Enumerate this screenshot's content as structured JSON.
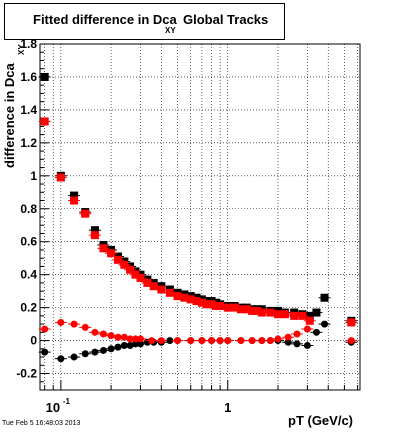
{
  "title": {
    "main": "Fitted difference in Dca",
    "sub": "XY",
    "suffix": "Global Tracks"
  },
  "timestamp": "Tue Feb  5 16:48:03 2013",
  "chart_data": {
    "type": "scatter",
    "title": "Fitted difference in Dca XY Global Tracks",
    "xlabel": "pT (GeV/c)",
    "ylabel": "difference in Dca",
    "ylabel_sub": "XY",
    "xscale": "log",
    "xlim": [
      0.075,
      6.2
    ],
    "ylim": [
      -0.3,
      1.8
    ],
    "grid": true,
    "x_ticks": [
      {
        "value": 0.1,
        "label": "10",
        "exp": "-1"
      },
      {
        "value": 1,
        "label": "1",
        "exp": ""
      }
    ],
    "y_ticks": [
      {
        "value": -0.2,
        "label": "-0.2"
      },
      {
        "value": 0,
        "label": "0"
      },
      {
        "value": 0.2,
        "label": "0.2"
      },
      {
        "value": 0.4,
        "label": "0.4"
      },
      {
        "value": 0.6,
        "label": "0.6"
      },
      {
        "value": 0.8,
        "label": "0.8"
      },
      {
        "value": 1,
        "label": "1"
      },
      {
        "value": 1.2,
        "label": "1.2"
      },
      {
        "value": 1.4,
        "label": "1.4"
      },
      {
        "value": 1.6,
        "label": "1.6"
      },
      {
        "value": 1.8,
        "label": "1.8"
      }
    ],
    "series": [
      {
        "color": "#000000",
        "marker": "square",
        "points": [
          [
            0.08,
            1.6
          ],
          [
            0.1,
            1.0
          ],
          [
            0.12,
            0.88
          ],
          [
            0.14,
            0.78
          ],
          [
            0.16,
            0.67
          ],
          [
            0.18,
            0.58
          ],
          [
            0.2,
            0.55
          ],
          [
            0.22,
            0.51
          ],
          [
            0.24,
            0.48
          ],
          [
            0.26,
            0.45
          ],
          [
            0.28,
            0.42
          ],
          [
            0.3,
            0.4
          ],
          [
            0.33,
            0.37
          ],
          [
            0.36,
            0.35
          ],
          [
            0.4,
            0.33
          ],
          [
            0.45,
            0.31
          ],
          [
            0.5,
            0.29
          ],
          [
            0.55,
            0.28
          ],
          [
            0.6,
            0.27
          ],
          [
            0.65,
            0.26
          ],
          [
            0.7,
            0.25
          ],
          [
            0.75,
            0.24
          ],
          [
            0.8,
            0.24
          ],
          [
            0.85,
            0.23
          ],
          [
            0.9,
            0.22
          ],
          [
            1.0,
            0.21
          ],
          [
            1.1,
            0.21
          ],
          [
            1.2,
            0.2
          ],
          [
            1.3,
            0.2
          ],
          [
            1.4,
            0.19
          ],
          [
            1.5,
            0.19
          ],
          [
            1.6,
            0.19
          ],
          [
            1.8,
            0.18
          ],
          [
            2.0,
            0.18
          ],
          [
            2.2,
            0.17
          ],
          [
            2.5,
            0.17
          ],
          [
            2.8,
            0.16
          ],
          [
            3.1,
            0.15
          ],
          [
            3.4,
            0.17
          ],
          [
            3.8,
            0.26
          ],
          [
            5.5,
            0.12
          ]
        ]
      },
      {
        "color": "#ff0000",
        "marker": "square",
        "points": [
          [
            0.08,
            1.33
          ],
          [
            0.1,
            0.99
          ],
          [
            0.12,
            0.85
          ],
          [
            0.14,
            0.77
          ],
          [
            0.16,
            0.64
          ],
          [
            0.18,
            0.56
          ],
          [
            0.2,
            0.53
          ],
          [
            0.22,
            0.49
          ],
          [
            0.24,
            0.46
          ],
          [
            0.26,
            0.43
          ],
          [
            0.28,
            0.4
          ],
          [
            0.3,
            0.38
          ],
          [
            0.33,
            0.35
          ],
          [
            0.36,
            0.33
          ],
          [
            0.4,
            0.31
          ],
          [
            0.45,
            0.29
          ],
          [
            0.5,
            0.27
          ],
          [
            0.55,
            0.26
          ],
          [
            0.6,
            0.25
          ],
          [
            0.65,
            0.24
          ],
          [
            0.7,
            0.23
          ],
          [
            0.75,
            0.22
          ],
          [
            0.8,
            0.22
          ],
          [
            0.85,
            0.21
          ],
          [
            0.9,
            0.21
          ],
          [
            1.0,
            0.2
          ],
          [
            1.1,
            0.2
          ],
          [
            1.2,
            0.19
          ],
          [
            1.3,
            0.19
          ],
          [
            1.4,
            0.18
          ],
          [
            1.5,
            0.18
          ],
          [
            1.6,
            0.17
          ],
          [
            1.8,
            0.17
          ],
          [
            2.0,
            0.16
          ],
          [
            2.2,
            0.16
          ],
          [
            2.5,
            0.15
          ],
          [
            2.8,
            0.15
          ],
          [
            3.1,
            0.12
          ],
          [
            5.5,
            0.11
          ]
        ]
      },
      {
        "color": "#000000",
        "marker": "circle",
        "points": [
          [
            0.08,
            -0.07
          ],
          [
            0.1,
            -0.11
          ],
          [
            0.12,
            -0.1
          ],
          [
            0.14,
            -0.08
          ],
          [
            0.16,
            -0.07
          ],
          [
            0.18,
            -0.06
          ],
          [
            0.2,
            -0.05
          ],
          [
            0.22,
            -0.04
          ],
          [
            0.24,
            -0.03
          ],
          [
            0.26,
            -0.03
          ],
          [
            0.28,
            -0.02
          ],
          [
            0.3,
            -0.02
          ],
          [
            0.33,
            -0.01
          ],
          [
            0.36,
            -0.01
          ],
          [
            0.4,
            -0.01
          ],
          [
            0.45,
            0.0
          ],
          [
            0.5,
            0.0
          ],
          [
            0.6,
            0.0
          ],
          [
            0.7,
            0.0
          ],
          [
            0.8,
            0.0
          ],
          [
            0.9,
            0.0
          ],
          [
            1.0,
            0.0
          ],
          [
            1.2,
            0.0
          ],
          [
            1.4,
            0.0
          ],
          [
            1.6,
            0.0
          ],
          [
            1.8,
            0.0
          ],
          [
            2.0,
            0.0
          ],
          [
            2.3,
            -0.01
          ],
          [
            2.6,
            -0.02
          ],
          [
            3.0,
            -0.03
          ],
          [
            3.4,
            0.05
          ],
          [
            3.8,
            0.1
          ],
          [
            5.5,
            -0.01
          ]
        ]
      },
      {
        "color": "#ff0000",
        "marker": "circle",
        "points": [
          [
            0.08,
            0.07
          ],
          [
            0.1,
            0.11
          ],
          [
            0.12,
            0.1
          ],
          [
            0.14,
            0.08
          ],
          [
            0.16,
            0.05
          ],
          [
            0.18,
            0.04
          ],
          [
            0.2,
            0.03
          ],
          [
            0.22,
            0.02
          ],
          [
            0.24,
            0.02
          ],
          [
            0.26,
            0.01
          ],
          [
            0.28,
            0.01
          ],
          [
            0.3,
            0.01
          ],
          [
            0.35,
            0.0
          ],
          [
            0.4,
            0.0
          ],
          [
            0.5,
            0.0
          ],
          [
            0.6,
            0.0
          ],
          [
            0.7,
            0.0
          ],
          [
            0.8,
            0.0
          ],
          [
            0.9,
            0.0
          ],
          [
            1.0,
            0.0
          ],
          [
            1.2,
            0.0
          ],
          [
            1.4,
            0.0
          ],
          [
            1.6,
            0.0
          ],
          [
            1.8,
            0.0
          ],
          [
            2.0,
            0.01
          ],
          [
            2.3,
            0.02
          ],
          [
            2.6,
            0.04
          ],
          [
            3.0,
            0.07
          ],
          [
            5.5,
            0.0
          ]
        ]
      }
    ]
  }
}
